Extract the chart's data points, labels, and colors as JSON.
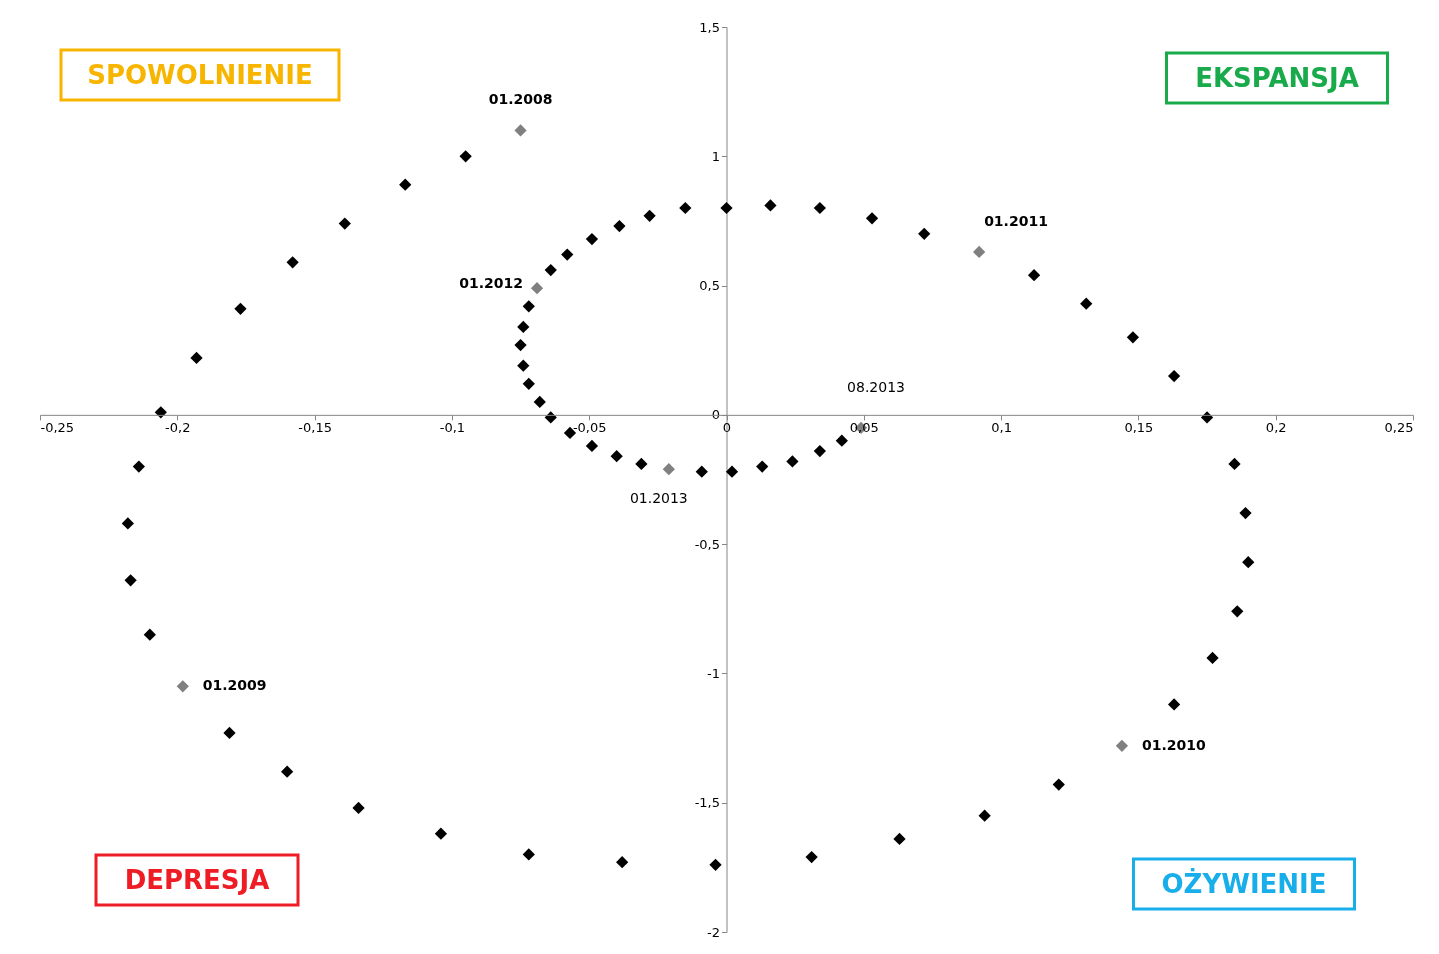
{
  "chart_data": {
    "type": "scatter",
    "marker": "diamond",
    "grid": false,
    "xlim": [
      -0.25,
      0.25
    ],
    "ylim": [
      -2,
      1.5
    ],
    "xticks": [
      {
        "value": -0.25,
        "label": "-0,25"
      },
      {
        "value": -0.2,
        "label": "-0,2"
      },
      {
        "value": -0.15,
        "label": "-0,15"
      },
      {
        "value": -0.1,
        "label": "-0,1"
      },
      {
        "value": -0.05,
        "label": "-0,05"
      },
      0,
      {
        "value": 0.05,
        "label": "0,05"
      },
      {
        "value": 0.1,
        "label": "0,1"
      },
      {
        "value": 0.15,
        "label": "0,15"
      },
      {
        "value": 0.2,
        "label": "0,2"
      },
      {
        "value": 0.25,
        "label": "0,25"
      }
    ],
    "yticks": [
      -2,
      {
        "value": -1.5,
        "label": "-1,5"
      },
      -1,
      {
        "value": -0.5,
        "label": "-0,5"
      },
      0,
      {
        "value": 0.5,
        "label": "0,5"
      },
      1,
      {
        "value": 1.5,
        "label": "1,5"
      }
    ],
    "series": [
      {
        "x": [
          -0.075,
          -0.095,
          -0.117,
          -0.139,
          -0.158,
          -0.177,
          -0.193,
          -0.206,
          -0.214,
          -0.218,
          -0.217,
          -0.21,
          -0.198,
          -0.181,
          -0.16,
          -0.134,
          -0.104,
          -0.072,
          -0.038,
          -0.004,
          0.031,
          0.063,
          0.094,
          0.121,
          0.144,
          0.163,
          0.177,
          0.186,
          0.19,
          0.189,
          0.185,
          0.175,
          0.163,
          0.148,
          0.131,
          0.112,
          0.092,
          0.072,
          0.053,
          0.034,
          0.016,
          0.0,
          -0.015,
          -0.028,
          -0.039,
          -0.049,
          -0.058,
          -0.064,
          -0.069,
          -0.072,
          -0.074,
          -0.075,
          -0.074,
          -0.072,
          -0.068,
          -0.064,
          -0.057,
          -0.049,
          -0.04,
          -0.031,
          -0.021,
          -0.009,
          0.002,
          0.013,
          0.024,
          0.034,
          0.042,
          0.049
        ],
        "values": [
          1.1,
          1.0,
          0.89,
          0.74,
          0.59,
          0.41,
          0.22,
          0.01,
          -0.2,
          -0.42,
          -0.64,
          -0.85,
          -1.05,
          -1.23,
          -1.38,
          -1.52,
          -1.62,
          -1.7,
          -1.73,
          -1.74,
          -1.71,
          -1.64,
          -1.55,
          -1.43,
          -1.28,
          -1.12,
          -0.94,
          -0.76,
          -0.57,
          -0.38,
          -0.19,
          -0.01,
          0.15,
          0.3,
          0.43,
          0.54,
          0.63,
          0.7,
          0.76,
          0.8,
          0.81,
          0.8,
          0.8,
          0.77,
          0.73,
          0.68,
          0.62,
          0.56,
          0.49,
          0.42,
          0.34,
          0.27,
          0.19,
          0.12,
          0.05,
          -0.01,
          -0.07,
          -0.12,
          -0.16,
          -0.19,
          -0.21,
          -0.22,
          -0.22,
          -0.2,
          -0.18,
          -0.14,
          -0.1,
          -0.05
        ],
        "colors": [
          "#808080",
          "#000000",
          "#000000",
          "#000000",
          "#000000",
          "#000000",
          "#000000",
          "#000000",
          "#000000",
          "#000000",
          "#000000",
          "#000000",
          "#808080",
          "#000000",
          "#000000",
          "#000000",
          "#000000",
          "#000000",
          "#000000",
          "#000000",
          "#000000",
          "#000000",
          "#000000",
          "#000000",
          "#808080",
          "#000000",
          "#000000",
          "#000000",
          "#000000",
          "#000000",
          "#000000",
          "#000000",
          "#000000",
          "#000000",
          "#000000",
          "#000000",
          "#808080",
          "#000000",
          "#000000",
          "#000000",
          "#000000",
          "#000000",
          "#000000",
          "#000000",
          "#000000",
          "#000000",
          "#000000",
          "#000000",
          "#808080",
          "#000000",
          "#000000",
          "#000000",
          "#000000",
          "#000000",
          "#000000",
          "#000000",
          "#000000",
          "#000000",
          "#000000",
          "#000000",
          "#808080",
          "#000000",
          "#000000",
          "#000000",
          "#000000",
          "#000000",
          "#000000",
          "#808080"
        ]
      }
    ],
    "annotations": [
      {
        "text": "01.2008",
        "x": -0.075,
        "y": 1.1
      },
      {
        "text": "01.2009",
        "x": -0.198,
        "y": -1.05
      },
      {
        "text": "01.2010",
        "x": 0.144,
        "y": -1.28
      },
      {
        "text": "01.2011",
        "x": 0.092,
        "y": 0.63
      },
      {
        "text": "01.2012",
        "x": -0.069,
        "y": 0.49
      },
      {
        "text": "01.2013",
        "x": -0.021,
        "y": -0.21
      },
      {
        "text": "08.2013",
        "x": 0.049,
        "y": -0.05
      },
      "SPOWOLNIENIE",
      "EKSPANSJA",
      "DEPRESJA",
      "OŻYWIENIE"
    ]
  }
}
